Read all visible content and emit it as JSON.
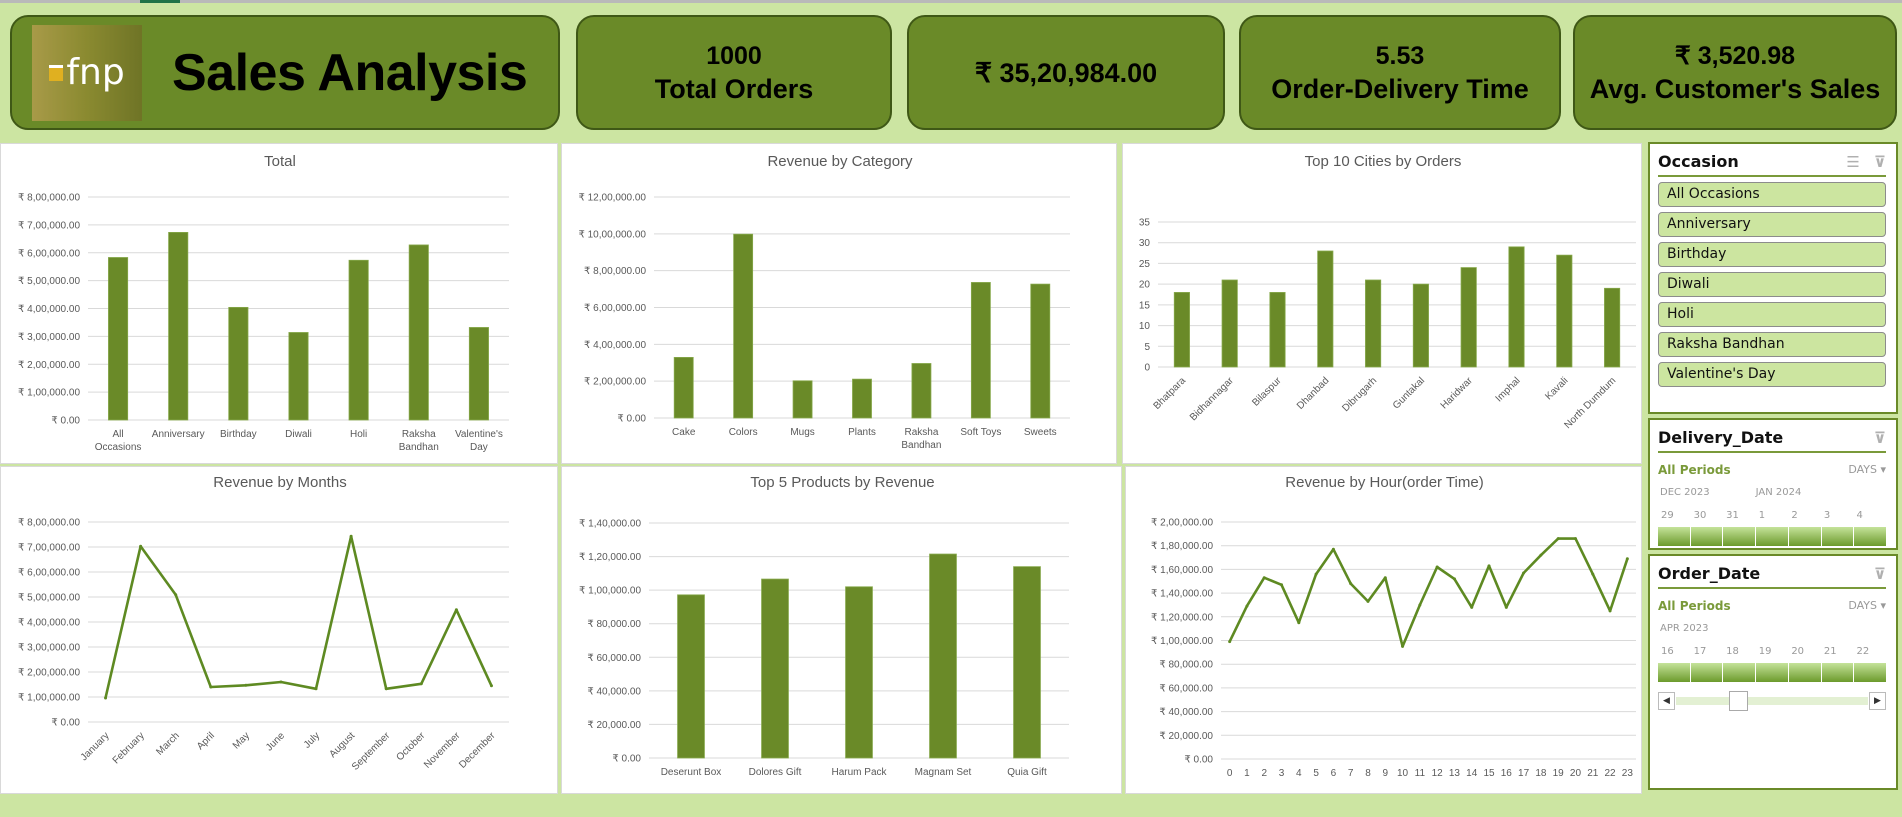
{
  "header": {
    "logo_text": "fnp",
    "title": "Sales Analysis",
    "kpis": [
      {
        "value": "1000",
        "label": "Total Orders"
      },
      {
        "value": "₹ 35,20,984.00",
        "label": ""
      },
      {
        "value": "5.53",
        "label": "Order-Delivery Time"
      },
      {
        "value": "₹ 3,520.98",
        "label": "Avg. Customer's Sales"
      }
    ]
  },
  "colors": {
    "accent": "#6a8a28",
    "background": "#cce5a2",
    "slicer_item": "#cce5a0"
  },
  "chart_data": [
    {
      "type": "bar",
      "title": "Total",
      "categories": [
        "All\nOccasions",
        "Anniversary",
        "Birthday",
        "Diwali",
        "Holi",
        "Raksha\nBandhan",
        "Valentine's\nDay"
      ],
      "values": [
        583000,
        673000,
        404000,
        314000,
        573000,
        628000,
        332000
      ],
      "ylim": [
        0,
        800000
      ],
      "ytick_values": [
        0,
        100000,
        200000,
        300000,
        400000,
        500000,
        600000,
        700000,
        800000
      ],
      "ytick_labels": [
        "₹ 0.00",
        "₹ 1,00,000.00",
        "₹ 2,00,000.00",
        "₹ 3,00,000.00",
        "₹ 4,00,000.00",
        "₹ 5,00,000.00",
        "₹ 6,00,000.00",
        "₹ 7,00,000.00",
        "₹ 8,00,000.00"
      ],
      "grid": true,
      "legend": "none",
      "rotate_labels": false
    },
    {
      "type": "bar",
      "title": "Revenue by Category",
      "categories": [
        "Cake",
        "Colors",
        "Mugs",
        "Plants",
        "Raksha\nBandhan",
        "Soft Toys",
        "Sweets"
      ],
      "values": [
        329000,
        998000,
        202000,
        211000,
        296000,
        736000,
        727000
      ],
      "ylim": [
        0,
        1200000
      ],
      "ytick_values": [
        0,
        200000,
        400000,
        600000,
        800000,
        1000000,
        1200000
      ],
      "ytick_labels": [
        "₹ 0.00",
        "₹ 2,00,000.00",
        "₹ 4,00,000.00",
        "₹ 6,00,000.00",
        "₹ 8,00,000.00",
        "₹ 10,00,000.00",
        "₹ 12,00,000.00"
      ],
      "grid": true,
      "legend": "none",
      "rotate_labels": false
    },
    {
      "type": "bar",
      "title": "Top 10 Cities by Orders",
      "categories": [
        "Bhatpara",
        "Bidhannagar",
        "Bilaspur",
        "Dhanbad",
        "Dibrugarh",
        "Guntakal",
        "Haridwar",
        "Imphal",
        "Kavali",
        "North Dumdum"
      ],
      "values": [
        18,
        21,
        18,
        28,
        21,
        20,
        24,
        29,
        27,
        19
      ],
      "ylim": [
        0,
        35
      ],
      "ytick_values": [
        0,
        5,
        10,
        15,
        20,
        25,
        30,
        35
      ],
      "ytick_labels": [
        "0",
        "5",
        "10",
        "15",
        "20",
        "25",
        "30",
        "35"
      ],
      "grid": true,
      "legend": "none",
      "rotate_labels": true
    },
    {
      "type": "line",
      "title": "Revenue by Months",
      "categories": [
        "January",
        "February",
        "March",
        "April",
        "May",
        "June",
        "July",
        "August",
        "September",
        "October",
        "November",
        "December"
      ],
      "values": [
        96000,
        703000,
        509000,
        140000,
        147000,
        160000,
        133000,
        743000,
        133000,
        153000,
        449000,
        145000
      ],
      "ylim": [
        0,
        800000
      ],
      "ytick_values": [
        0,
        100000,
        200000,
        300000,
        400000,
        500000,
        600000,
        700000,
        800000
      ],
      "ytick_labels": [
        "₹ 0.00",
        "₹ 1,00,000.00",
        "₹ 2,00,000.00",
        "₹ 3,00,000.00",
        "₹ 4,00,000.00",
        "₹ 5,00,000.00",
        "₹ 6,00,000.00",
        "₹ 7,00,000.00",
        "₹ 8,00,000.00"
      ],
      "grid": true,
      "legend": "none",
      "rotate_labels": true
    },
    {
      "type": "bar",
      "title": "Top 5 Products by Revenue",
      "categories": [
        "Deserunt Box",
        "Dolores Gift",
        "Harum Pack",
        "Magnam Set",
        "Quia Gift"
      ],
      "values": [
        97200,
        106600,
        102000,
        121500,
        114000
      ],
      "ylim": [
        0,
        140000
      ],
      "ytick_values": [
        0,
        20000,
        40000,
        60000,
        80000,
        100000,
        120000,
        140000
      ],
      "ytick_labels": [
        "₹ 0.00",
        "₹ 20,000.00",
        "₹ 40,000.00",
        "₹ 60,000.00",
        "₹ 80,000.00",
        "₹ 1,00,000.00",
        "₹ 1,20,000.00",
        "₹ 1,40,000.00"
      ],
      "grid": true,
      "legend": "none",
      "rotate_labels": false
    },
    {
      "type": "line",
      "title": "Revenue by Hour(order Time)",
      "categories": [
        "0",
        "1",
        "2",
        "3",
        "4",
        "5",
        "6",
        "7",
        "8",
        "9",
        "10",
        "11",
        "12",
        "13",
        "14",
        "15",
        "16",
        "17",
        "18",
        "19",
        "20",
        "21",
        "22",
        "23"
      ],
      "values": [
        99000,
        129000,
        153000,
        147000,
        115000,
        156000,
        177000,
        148000,
        133000,
        153000,
        95000,
        130000,
        162000,
        152000,
        128000,
        163000,
        128000,
        157000,
        172000,
        186000,
        186000,
        156000,
        125000,
        169000
      ],
      "ylim": [
        0,
        200000
      ],
      "ytick_values": [
        0,
        20000,
        40000,
        60000,
        80000,
        100000,
        120000,
        140000,
        160000,
        180000,
        200000
      ],
      "ytick_labels": [
        "₹ 0.00",
        "₹ 20,000.00",
        "₹ 40,000.00",
        "₹ 60,000.00",
        "₹ 80,000.00",
        "₹ 1,00,000.00",
        "₹ 1,20,000.00",
        "₹ 1,40,000.00",
        "₹ 1,60,000.00",
        "₹ 1,80,000.00",
        "₹ 2,00,000.00"
      ],
      "grid": true,
      "legend": "none",
      "rotate_labels": false
    }
  ],
  "slicers": {
    "occasion": {
      "title": "Occasion",
      "items": [
        "All Occasions",
        "Anniversary",
        "Birthday",
        "Diwali",
        "Holi",
        "Raksha Bandhan",
        "Valentine's Day"
      ]
    },
    "delivery_date": {
      "title": "Delivery_Date",
      "period": "All Periods",
      "level": "DAYS",
      "months": [
        "DEC 2023",
        "JAN 2024"
      ],
      "days": [
        "29",
        "30",
        "31",
        "1",
        "2",
        "3",
        "4"
      ],
      "scroll_position": 0.55
    },
    "order_date": {
      "title": "Order_Date",
      "period": "All Periods",
      "level": "DAYS",
      "months": [
        "APR 2023"
      ],
      "days": [
        "16",
        "17",
        "18",
        "19",
        "20",
        "21",
        "22"
      ],
      "scroll_position": 0.3
    }
  }
}
